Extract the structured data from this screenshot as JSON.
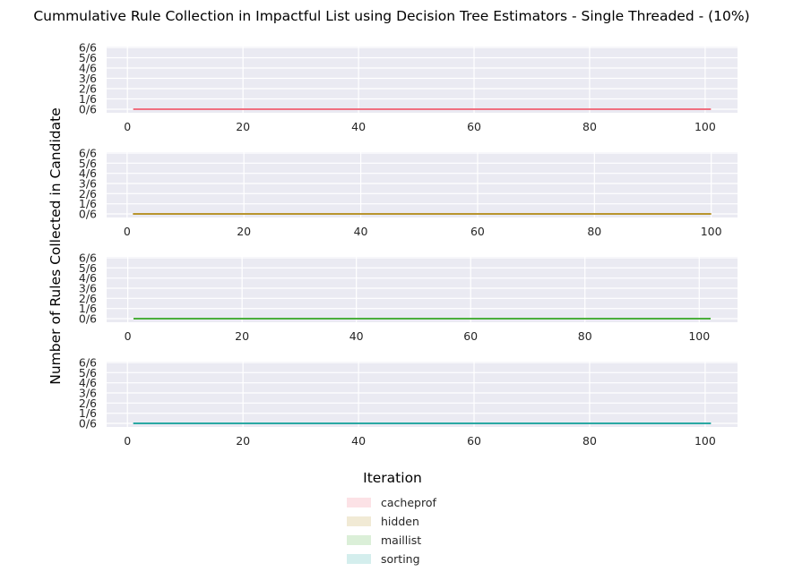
{
  "chart_data": {
    "type": "line",
    "title": "Cummulative Rule Collection in Impactful List using Decision Tree Estimators - Single Threaded - (10%)",
    "xlabel": "Iteration",
    "ylabel": "Number of Rules Collected in Candidate",
    "ytick_labels": [
      "0/6",
      "1/6",
      "2/6",
      "3/6",
      "4/6",
      "5/6",
      "6/6"
    ],
    "ylim": [
      0,
      6
    ],
    "grid": true,
    "legend_placement": "bottom-center",
    "subplots": [
      {
        "series": {
          "name": "cacheprof",
          "color": "#f07080",
          "x": [
            1,
            101
          ],
          "y": [
            0,
            0
          ]
        },
        "xticks": [
          20,
          40,
          60,
          80,
          100
        ],
        "xlim": [
          -3.6,
          105.6
        ]
      },
      {
        "series": {
          "name": "hidden",
          "color": "#b8952e",
          "x": [
            1,
            100
          ],
          "y": [
            0,
            0
          ]
        },
        "xticks": [
          20,
          40,
          60,
          80,
          100
        ],
        "xlim": [
          -3.5,
          104.5
        ]
      },
      {
        "series": {
          "name": "maillist",
          "color": "#4caf3c",
          "x": [
            1,
            102
          ],
          "y": [
            0,
            0
          ]
        },
        "xticks": [
          20,
          40,
          60,
          80,
          100
        ],
        "xlim": [
          -3.7,
          106.7
        ]
      },
      {
        "series": {
          "name": "sorting",
          "color": "#2aa9a3",
          "x": [
            1,
            101
          ],
          "y": [
            0,
            0
          ]
        },
        "xticks": [
          0,
          20,
          40,
          60,
          80,
          100
        ],
        "xlim": [
          -3.6,
          105.6
        ]
      }
    ]
  }
}
